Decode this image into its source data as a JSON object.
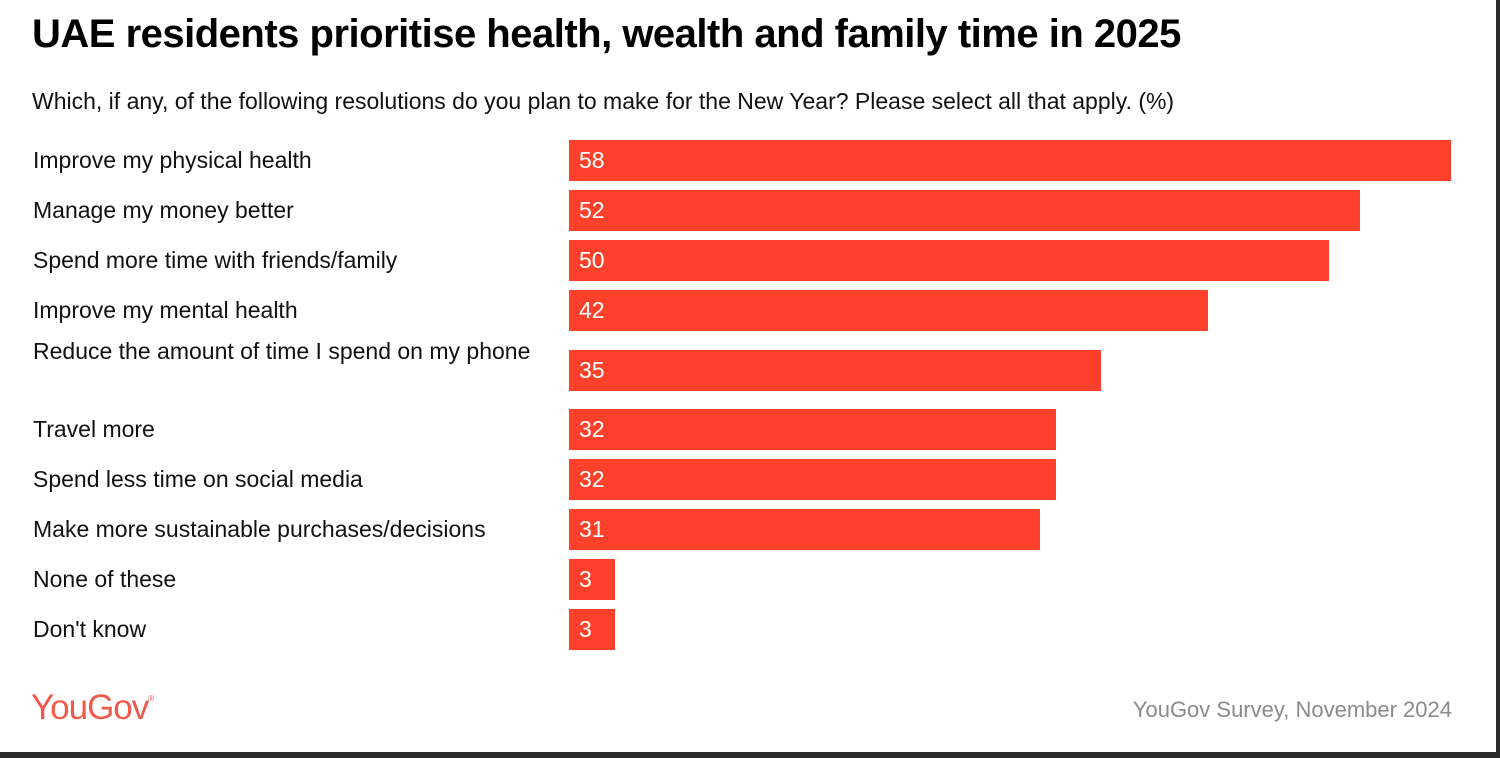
{
  "chart_data": {
    "type": "bar",
    "orientation": "horizontal",
    "title": "UAE residents prioritise health, wealth and family time in 2025",
    "subtitle": "Which, if any, of the following resolutions do you plan to make for the New Year? Please select all that apply. (%)",
    "categories": [
      "Improve my physical health",
      "Manage my money better",
      "Spend more time with friends/family",
      "Improve my mental health",
      "Reduce the amount of time I spend on my phone",
      "Travel more",
      "Spend less time on social media",
      "Make more sustainable purchases/decisions",
      "None of these",
      "Don't know"
    ],
    "values": [
      58,
      52,
      50,
      42,
      35,
      32,
      32,
      31,
      3,
      3
    ],
    "xlabel": "",
    "ylabel": "",
    "xlim": [
      0,
      58
    ],
    "grid": false,
    "legend": "none",
    "bar_color": "#ff412c"
  },
  "footer": {
    "logo": "YouGov",
    "logo_mark": "®",
    "source": "YouGov Survey, November 2024"
  }
}
